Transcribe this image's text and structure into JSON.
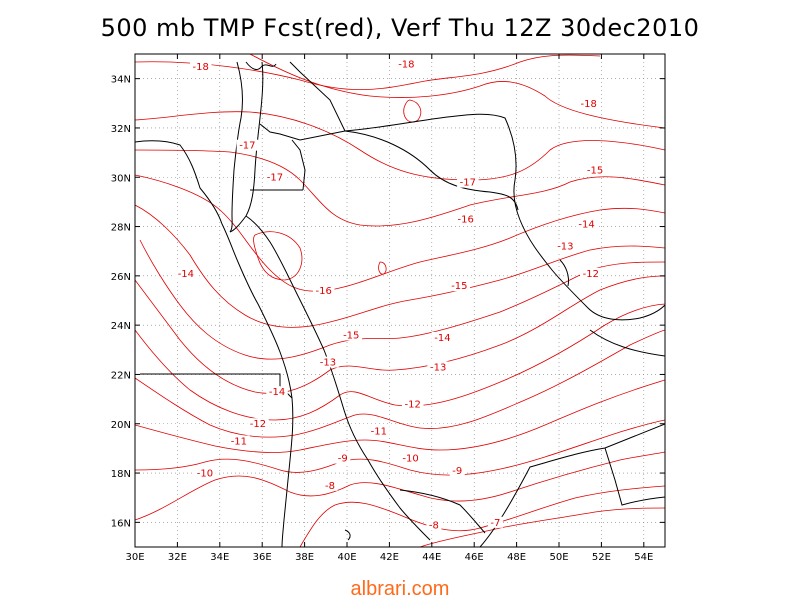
{
  "title": "500 mb TMP Fcst(red), Verf Thu 12Z 30dec2010",
  "watermark": "albrari.com",
  "colors": {
    "contour": "#e00000",
    "coast": "#000000",
    "grid": "#7f7f7f",
    "watermark": "#ff6a1a"
  },
  "map": {
    "lon_range": [
      30,
      55
    ],
    "lat_range": [
      15,
      35
    ],
    "lon_ticks": [
      {
        "value": 30,
        "label": "30E"
      },
      {
        "value": 32,
        "label": "32E"
      },
      {
        "value": 34,
        "label": "34E"
      },
      {
        "value": 36,
        "label": "36E"
      },
      {
        "value": 38,
        "label": "38E"
      },
      {
        "value": 40,
        "label": "40E"
      },
      {
        "value": 42,
        "label": "42E"
      },
      {
        "value": 44,
        "label": "44E"
      },
      {
        "value": 46,
        "label": "46E"
      },
      {
        "value": 48,
        "label": "48E"
      },
      {
        "value": 50,
        "label": "50E"
      },
      {
        "value": 52,
        "label": "52E"
      },
      {
        "value": 54,
        "label": "54E"
      }
    ],
    "lat_ticks": [
      {
        "value": 16,
        "label": "16N"
      },
      {
        "value": 18,
        "label": "18N"
      },
      {
        "value": 20,
        "label": "20N"
      },
      {
        "value": 22,
        "label": "22N"
      },
      {
        "value": 24,
        "label": "24N"
      },
      {
        "value": 26,
        "label": "26N"
      },
      {
        "value": 28,
        "label": "28N"
      },
      {
        "value": 30,
        "label": "30N"
      },
      {
        "value": 32,
        "label": "32N"
      },
      {
        "value": 34,
        "label": "34N"
      }
    ],
    "grid": "dotted"
  },
  "contour_labels": [
    {
      "text": "-18",
      "lon": 33.1,
      "lat": 34.4
    },
    {
      "text": "-18",
      "lon": 42.8,
      "lat": 34.5
    },
    {
      "text": "-18",
      "lon": 51.4,
      "lat": 32.9
    },
    {
      "text": "-17",
      "lon": 35.3,
      "lat": 31.2
    },
    {
      "text": "-17",
      "lon": 36.6,
      "lat": 29.9
    },
    {
      "text": "-17",
      "lon": 45.7,
      "lat": 29.7
    },
    {
      "text": "-16",
      "lon": 45.6,
      "lat": 28.2
    },
    {
      "text": "-16",
      "lon": 38.9,
      "lat": 25.3
    },
    {
      "text": "-15",
      "lon": 51.7,
      "lat": 30.2
    },
    {
      "text": "-15",
      "lon": 45.3,
      "lat": 25.5
    },
    {
      "text": "-15",
      "lon": 40.2,
      "lat": 23.5
    },
    {
      "text": "-14",
      "lon": 32.4,
      "lat": 26.0
    },
    {
      "text": "-14",
      "lon": 51.3,
      "lat": 28.0
    },
    {
      "text": "-14",
      "lon": 44.5,
      "lat": 23.4
    },
    {
      "text": "-14",
      "lon": 36.7,
      "lat": 21.2
    },
    {
      "text": "-13",
      "lon": 50.3,
      "lat": 27.1
    },
    {
      "text": "-13",
      "lon": 44.3,
      "lat": 22.2
    },
    {
      "text": "-13",
      "lon": 39.1,
      "lat": 22.4
    },
    {
      "text": "-12",
      "lon": 51.5,
      "lat": 26.0
    },
    {
      "text": "-12",
      "lon": 43.1,
      "lat": 20.7
    },
    {
      "text": "-12",
      "lon": 35.8,
      "lat": 19.9
    },
    {
      "text": "-11",
      "lon": 41.5,
      "lat": 19.6
    },
    {
      "text": "-11",
      "lon": 34.9,
      "lat": 19.2
    },
    {
      "text": "-10",
      "lon": 33.3,
      "lat": 17.9
    },
    {
      "text": "-10",
      "lon": 43.0,
      "lat": 18.5
    },
    {
      "text": "-9",
      "lon": 39.8,
      "lat": 18.5
    },
    {
      "text": "-9",
      "lon": 45.2,
      "lat": 18.0
    },
    {
      "text": "-8",
      "lon": 39.2,
      "lat": 17.4
    },
    {
      "text": "-8",
      "lon": 44.1,
      "lat": 15.8
    },
    {
      "text": "-7",
      "lon": 47.0,
      "lat": 15.9
    }
  ]
}
